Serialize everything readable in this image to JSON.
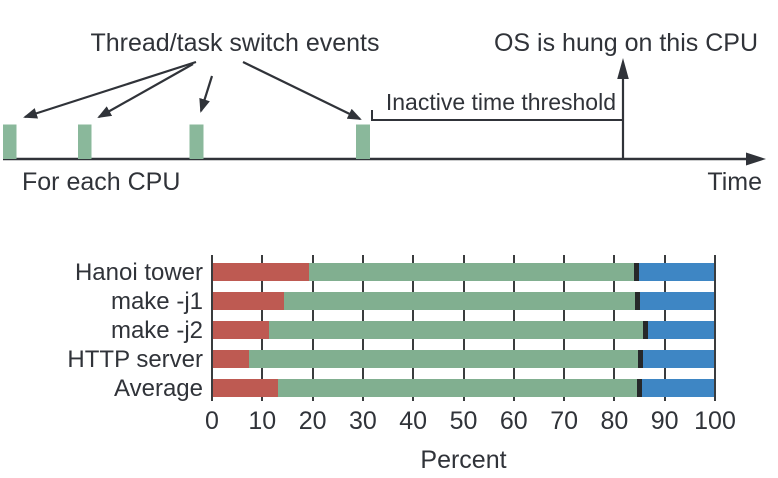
{
  "figure": {
    "timeline": {
      "events_label": "Thread/task switch events",
      "hung_label": "OS is hung on this CPU",
      "threshold_label": "Inactive time threshold",
      "cpu_label": "For each CPU",
      "time_label": "Time",
      "event_color": "#8ab89b",
      "line_color": "#303339"
    }
  },
  "chart_data": {
    "type": "bar",
    "orientation": "horizontal-stacked",
    "title": "",
    "xlabel": "Percent",
    "ylabel": "",
    "xlim": [
      0,
      100
    ],
    "xticks": [
      0,
      10,
      20,
      30,
      40,
      50,
      60,
      70,
      80,
      90,
      100
    ],
    "grid": true,
    "categories": [
      "Hanoi tower",
      "make -j1",
      "make -j2",
      "HTTP server",
      "Average"
    ],
    "series": [
      {
        "name": "red",
        "color": "#be5a52",
        "values": [
          19.3,
          14.4,
          11.3,
          7.3,
          13.1
        ]
      },
      {
        "name": "green",
        "color": "#81af90",
        "values": [
          64.6,
          69.6,
          74.4,
          77.3,
          71.4
        ]
      },
      {
        "name": "black",
        "color": "#26282a",
        "values": [
          1.0,
          1.0,
          1.0,
          1.0,
          1.0
        ]
      },
      {
        "name": "blue",
        "color": "#3e86c4",
        "values": [
          15.1,
          15.0,
          13.3,
          14.4,
          14.5
        ]
      }
    ]
  }
}
